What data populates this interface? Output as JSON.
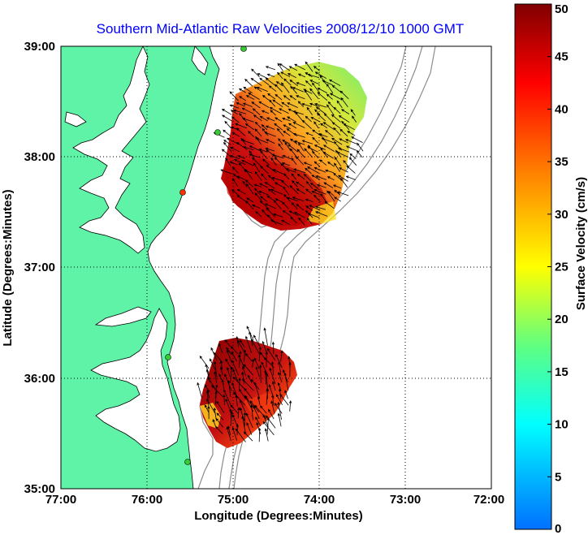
{
  "title": "Southern Mid-Atlantic Raw Velocities 2008/12/10 1000 GMT",
  "x_axis": {
    "label": "Longitude (Degrees:Minutes)",
    "ticks": [
      "77:00",
      "76:00",
      "75:00",
      "74:00",
      "73:00",
      "72:00"
    ],
    "range": [
      -77,
      -72
    ]
  },
  "y_axis": {
    "label": "Latitude (Degrees:Minutes)",
    "ticks": [
      "39:00",
      "38:00",
      "37:00",
      "36:00",
      "35:00"
    ],
    "range": [
      35,
      39
    ]
  },
  "colorbar": {
    "label": "Surface Velocity (cm/s)",
    "ticks": [
      "50",
      "45",
      "40",
      "35",
      "30",
      "25",
      "20",
      "15",
      "10",
      "5",
      "0"
    ],
    "range": [
      0,
      50
    ],
    "colors": [
      "#0070ff",
      "#00ffff",
      "#60ff80",
      "#ffff00",
      "#ff8000",
      "#ff0000",
      "#800000"
    ]
  },
  "colors": {
    "land": "#5ff3a7",
    "station": "#33cc33",
    "station_alt": "#ff3300",
    "bathymetry": "#8c8c8c",
    "title": "#0000ff"
  },
  "grid": "dotted",
  "legend": "colorbar-right"
}
